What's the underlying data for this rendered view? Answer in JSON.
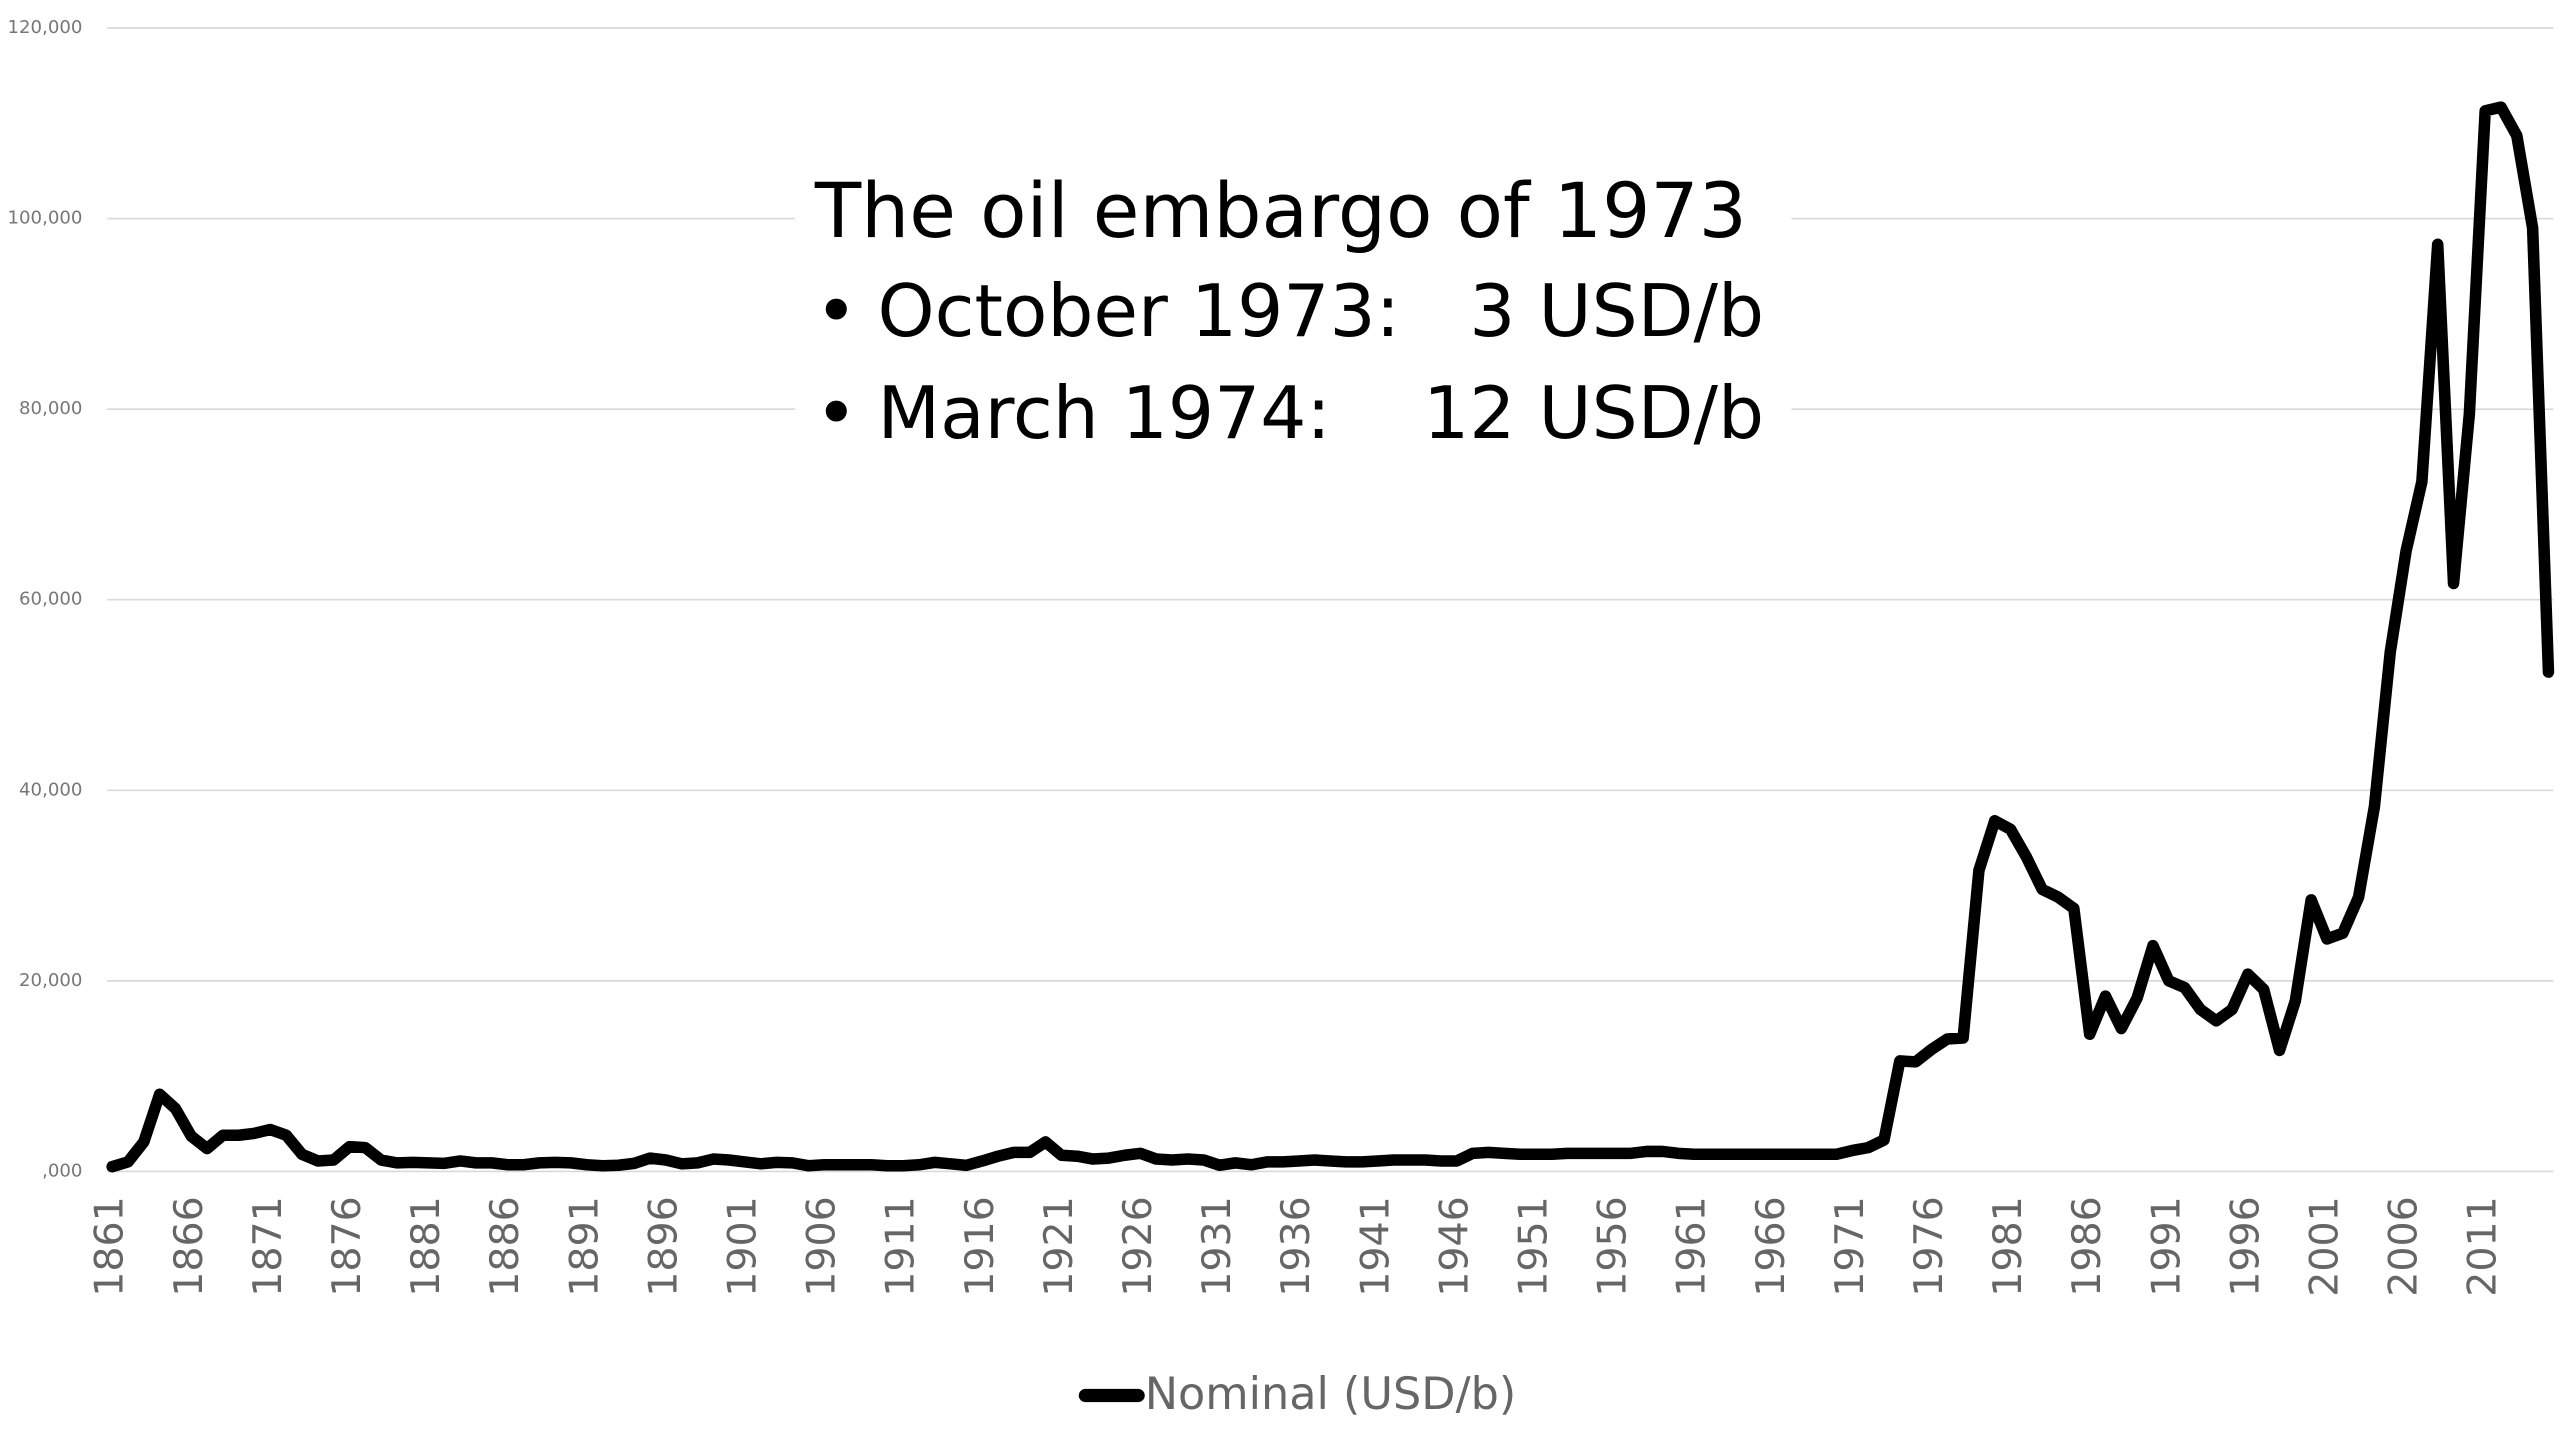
{
  "chart_data": {
    "type": "line",
    "x": [
      1861,
      1862,
      1863,
      1864,
      1865,
      1866,
      1867,
      1868,
      1869,
      1870,
      1871,
      1872,
      1873,
      1874,
      1875,
      1876,
      1877,
      1878,
      1879,
      1880,
      1881,
      1882,
      1883,
      1884,
      1885,
      1886,
      1887,
      1888,
      1889,
      1890,
      1891,
      1892,
      1893,
      1894,
      1895,
      1896,
      1897,
      1898,
      1899,
      1900,
      1901,
      1902,
      1903,
      1904,
      1905,
      1906,
      1907,
      1908,
      1909,
      1910,
      1911,
      1912,
      1913,
      1914,
      1915,
      1916,
      1917,
      1918,
      1919,
      1920,
      1921,
      1922,
      1923,
      1924,
      1925,
      1926,
      1927,
      1928,
      1929,
      1930,
      1931,
      1932,
      1933,
      1934,
      1935,
      1936,
      1937,
      1938,
      1939,
      1940,
      1941,
      1942,
      1943,
      1944,
      1945,
      1946,
      1947,
      1948,
      1949,
      1950,
      1951,
      1952,
      1953,
      1954,
      1955,
      1956,
      1957,
      1958,
      1959,
      1960,
      1961,
      1962,
      1963,
      1964,
      1965,
      1966,
      1967,
      1968,
      1969,
      1970,
      1971,
      1972,
      1973,
      1974,
      1975,
      1976,
      1977,
      1978,
      1979,
      1980,
      1981,
      1982,
      1983,
      1984,
      1985,
      1986,
      1987,
      1988,
      1989,
      1990,
      1991,
      1992,
      1993,
      1994,
      1995,
      1996,
      1997,
      1998,
      1999,
      2000,
      2001,
      2002,
      2003,
      2004,
      2005,
      2006,
      2007,
      2008,
      2009,
      2010,
      2011,
      2012,
      2013,
      2014,
      2015
    ],
    "series": [
      {
        "name": "Nominal (USD/b)",
        "color": "#000000",
        "values": [
          500,
          1000,
          3100,
          8100,
          6600,
          3700,
          2400,
          3800,
          3800,
          4000,
          4400,
          3800,
          1800,
          1100,
          1200,
          2600,
          2500,
          1200,
          900,
          950,
          900,
          850,
          1100,
          900,
          900,
          700,
          700,
          900,
          950,
          900,
          700,
          600,
          650,
          850,
          1400,
          1200,
          800,
          900,
          1300,
          1200,
          1000,
          800,
          950,
          900,
          600,
          700,
          700,
          700,
          700,
          600,
          600,
          700,
          950,
          800,
          640,
          1100,
          1600,
          2000,
          2000,
          3100,
          1700,
          1600,
          1300,
          1400,
          1700,
          1900,
          1300,
          1200,
          1300,
          1200,
          650,
          900,
          700,
          1000,
          1000,
          1100,
          1200,
          1100,
          1000,
          1000,
          1100,
          1200,
          1200,
          1200,
          1100,
          1100,
          1900,
          2000,
          1900,
          1800,
          1800,
          1800,
          1900,
          1900,
          1900,
          1900,
          1900,
          2100,
          2100,
          1900,
          1800,
          1800,
          1800,
          1800,
          1800,
          1800,
          1800,
          1800,
          1800,
          1800,
          2200,
          2500,
          3300,
          11600,
          11500,
          12800,
          13900,
          14000,
          31600,
          36800,
          35900,
          33000,
          29600,
          28800,
          27600,
          14400,
          18400,
          15000,
          18200,
          23700,
          20000,
          19300,
          17000,
          15800,
          17000,
          20700,
          19100,
          12700,
          17900,
          28500,
          24400,
          25000,
          28800,
          38300,
          54500,
          65100,
          72400,
          97300,
          61700,
          79500,
          111300,
          111700,
          108700,
          99000,
          52400
        ]
      }
    ],
    "xlim": [
      1861,
      2015
    ],
    "xticks": [
      1861,
      1866,
      1871,
      1876,
      1881,
      1886,
      1891,
      1896,
      1901,
      1906,
      1911,
      1916,
      1921,
      1926,
      1931,
      1936,
      1941,
      1946,
      1951,
      1956,
      1961,
      1966,
      1971,
      1976,
      1981,
      1986,
      1991,
      1996,
      2001,
      2006,
      2011
    ],
    "ylim": [
      0,
      120000
    ],
    "yticks": [
      {
        "value": 0,
        "label": ",000"
      },
      {
        "value": 20000,
        "label": "20,000"
      },
      {
        "value": 40000,
        "label": "40,000"
      },
      {
        "value": 60000,
        "label": "60,000"
      },
      {
        "value": 80000,
        "label": "80,000"
      },
      {
        "value": 100000,
        "label": "100,000"
      },
      {
        "value": 120000,
        "label": "120,000"
      }
    ],
    "grid": true,
    "legend": "bottom",
    "annotation": {
      "title": "The oil embargo of 1973",
      "bullets": [
        "October 1973:   3 USD/b",
        "March 1974:    12 USD/b"
      ]
    }
  }
}
